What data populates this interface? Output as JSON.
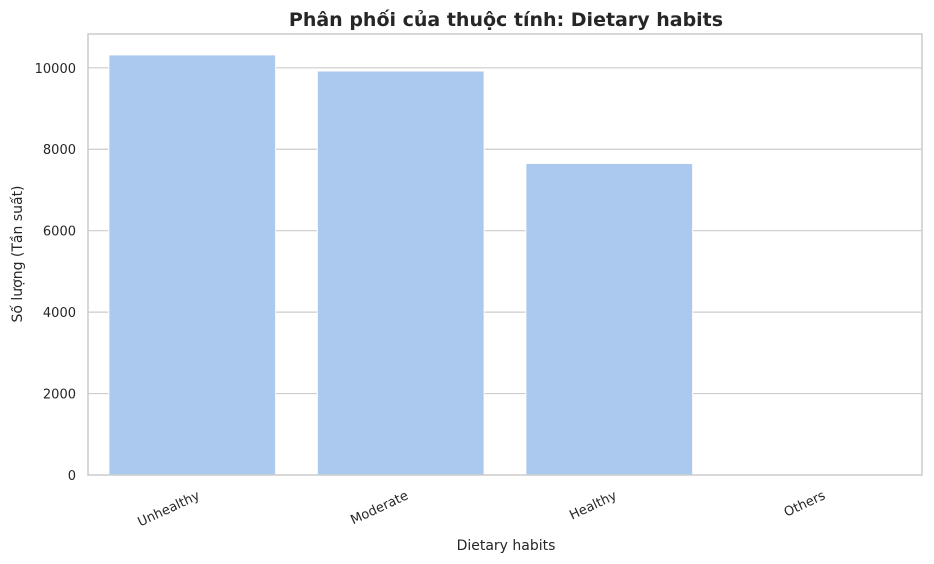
{
  "chart_data": {
    "type": "bar",
    "title": "Phân phối của thuộc tính: Dietary habits",
    "xlabel": "Dietary habits",
    "ylabel": "Số lượng (Tần suất)",
    "categories": [
      "Unhealthy",
      "Moderate",
      "Healthy",
      "Others"
    ],
    "values": [
      10317,
      9921,
      7651,
      12
    ],
    "ylim": [
      0,
      10830
    ],
    "yticks": [
      0,
      2000,
      4000,
      6000,
      8000,
      10000
    ],
    "grid": "y",
    "bar_color": "#abc9ee",
    "grid_color": "#cccccc"
  }
}
